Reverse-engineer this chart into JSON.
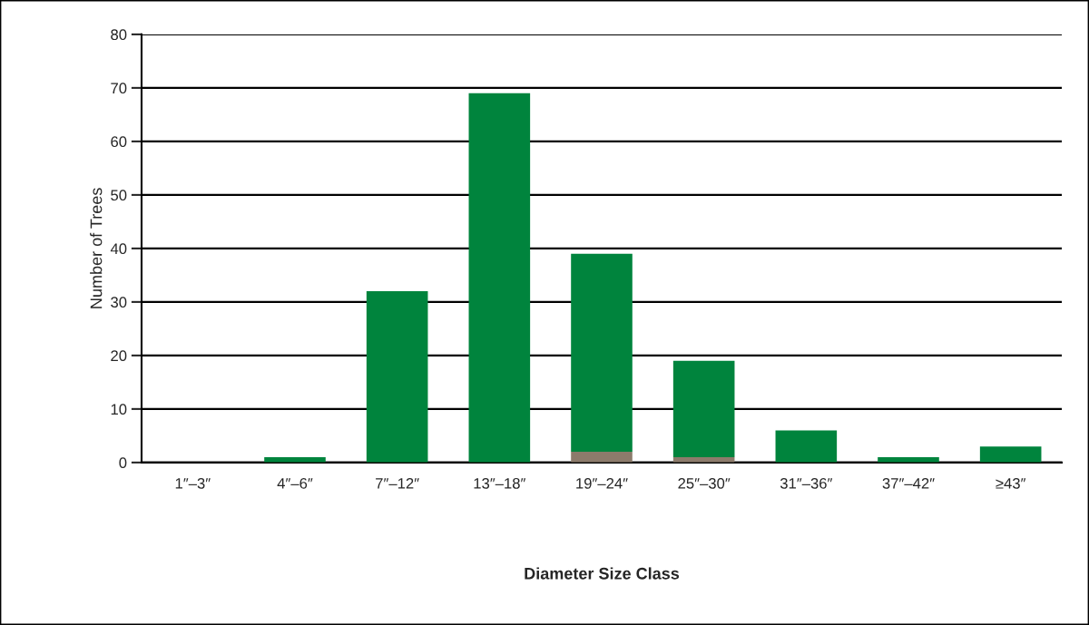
{
  "chart_data": {
    "type": "bar",
    "stacked": true,
    "xlabel": "Diameter Size Class",
    "ylabel": "Number of Trees",
    "categories": [
      "1″–3″",
      "4″–6″",
      "7″–12″",
      "13″–18″",
      "19″–24″",
      "25″–30″",
      "31″–36″",
      "37″–42″",
      "≥43″"
    ],
    "series": [
      {
        "color": "#8c7b6b",
        "values": [
          null,
          null,
          null,
          null,
          2,
          1,
          null,
          null,
          null
        ]
      },
      {
        "color": "#00843d",
        "values": [
          0,
          1,
          32,
          69,
          37,
          18,
          6,
          1,
          3
        ]
      }
    ],
    "ylim": [
      0,
      80
    ],
    "yticks": [
      0,
      10,
      20,
      30,
      40,
      50,
      60,
      70,
      80
    ],
    "grid": "y",
    "legend": false
  }
}
